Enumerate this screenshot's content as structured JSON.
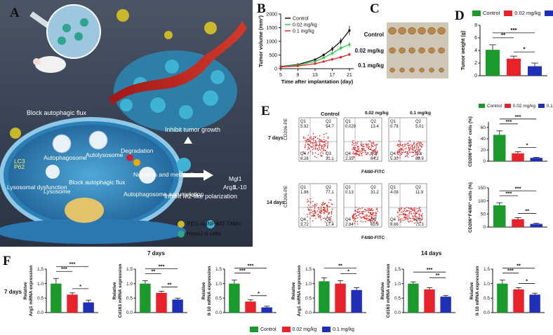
{
  "panels": {
    "A": "A",
    "B": "B",
    "C": "C",
    "D": "D",
    "E": "E",
    "F": "F"
  },
  "panelA": {
    "block_flux": "Block autophagic flux",
    "inhibit_growth": "Inhibit tumor growth",
    "inhibit_m2": "Inhibit M2-like polarization",
    "autophagosome": "Autophagosome",
    "autolysosome": "Autolysosome",
    "degradation": "Degradation",
    "lysosomal_dysfunction": "Lysosomal dysfunction",
    "lysosome": "Lysosome",
    "block_flux_inner": "Block autophagic flux",
    "nutrients": "Nutrients and metabolites",
    "accumulation": "Autophagosome accumulation",
    "lc3": "LC3",
    "p62": "P62",
    "arg1": "Arg1",
    "il10": "IL-10",
    "mgl1": "Mgl1",
    "legend_pegau": "PEG-AuNPs",
    "legend_hepa": "Hepa1-6 cells",
    "legend_m2": "M2-TAMs"
  },
  "colors": {
    "control": "#1a9a2a",
    "low": "#e8222a",
    "high": "#1f2fb8",
    "green_line": "#2ecc40",
    "red_line": "#e8222a",
    "black_line": "#111111"
  },
  "chart_data": [
    {
      "id": "B",
      "type": "line",
      "ylabel": "Tumor volume (mm³)",
      "xlabel": "Time after implantation (day)",
      "x": [
        5,
        9,
        13,
        15,
        17,
        19,
        21
      ],
      "xticks": [
        "5",
        "9",
        "13",
        "17",
        "21"
      ],
      "yticks": [
        "0",
        "500",
        "1000",
        "1500",
        "2000"
      ],
      "ylim": [
        0,
        2000
      ],
      "series": [
        {
          "name": "Control",
          "values": [
            80,
            150,
            330,
            500,
            720,
            1000,
            1400
          ]
        },
        {
          "name": "0.02 mg/kg",
          "values": [
            70,
            130,
            260,
            400,
            560,
            760,
            880
          ]
        },
        {
          "name": "0.1 mg/kg",
          "values": [
            60,
            100,
            180,
            260,
            340,
            420,
            520
          ]
        }
      ]
    },
    {
      "id": "D",
      "type": "bar",
      "ylabel": "Tumor weight (g)",
      "categories": [
        "Control",
        "0.02 mg/kg",
        "0.1 mg/kg"
      ],
      "values": [
        4.1,
        2.7,
        1.5
      ],
      "errors": [
        0.8,
        0.4,
        0.5
      ],
      "yticks": [
        "0",
        "2",
        "4",
        "6",
        "8"
      ],
      "ylim": [
        0,
        8
      ],
      "sig": [
        "**",
        "***",
        "*"
      ]
    },
    {
      "id": "E-7d",
      "type": "bar",
      "ylabel": "CD206⁺F4/80⁺ cells (%)",
      "categories": [
        "Control",
        "0.02 mg/kg",
        "0.1 mg/kg"
      ],
      "values": [
        47,
        14,
        6
      ],
      "errors": [
        7,
        3,
        1
      ],
      "yticks": [
        "0",
        "20",
        "40",
        "60"
      ],
      "ylim": [
        0,
        70
      ],
      "sig": [
        "***",
        "***",
        "*"
      ]
    },
    {
      "id": "E-14d",
      "type": "bar",
      "ylabel": "CD206⁺F4/80⁺ cells (%)",
      "categories": [
        "Control",
        "0.02 mg/kg",
        "0.1 mg/kg"
      ],
      "values": [
        83,
        30,
        12
      ],
      "errors": [
        10,
        6,
        3
      ],
      "yticks": [
        "0",
        "50",
        "100",
        "150"
      ],
      "ylim": [
        0,
        150
      ],
      "sig": [
        "***",
        "***",
        "**"
      ]
    }
  ],
  "panelC": {
    "rows": [
      "Control",
      "0.02 mg/kg",
      "0.1 mg/kg"
    ]
  },
  "legends": {
    "control": "Control",
    "low": "0.02 mg/kg",
    "high": "0.1 mg/kg"
  },
  "flow": {
    "headers": [
      "Control",
      "0.02 mg/kg",
      "0.1 mg/kg"
    ],
    "row_labels": [
      "7 days",
      "14 days"
    ],
    "ylabel": "CD206-PE",
    "xlabel": "F4/80-FITC",
    "rows": [
      [
        {
          "q1": "5.92",
          "q2": "54.7",
          "q3": "31.1",
          "q4": "8.28"
        },
        {
          "q1": "0.029",
          "q2": "13.4",
          "q3": "84.2",
          "q4": "2.35"
        },
        {
          "q1": "0.78",
          "q2": "5.01",
          "q3": "88.9",
          "q4": "5.30"
        }
      ],
      [
        {
          "q1": "1.86",
          "q2": "77.1",
          "q3": "17.4",
          "q4": "3.72"
        },
        {
          "q1": "0.13",
          "q2": "31.2",
          "q3": "65.9",
          "q4": "2.84"
        },
        {
          "q1": "4.08",
          "q2": "11.9",
          "q3": "75.3",
          "q4": "8.66"
        }
      ]
    ]
  },
  "panelF": {
    "title_7d": "7 days",
    "title_14d": "14 days",
    "row_label": "7 days",
    "charts": [
      {
        "ylabel": "Relative",
        "gene": "Arg1",
        "unit": "mRNA expression",
        "values": [
          1.0,
          0.62,
          0.35
        ],
        "errors": [
          0.18,
          0.06,
          0.08
        ],
        "sig": [
          "***",
          "***",
          "*"
        ]
      },
      {
        "ylabel": "Relative",
        "gene": "Cd163",
        "unit": "mRNA expression",
        "values": [
          1.0,
          0.68,
          0.45
        ],
        "errors": [
          0.1,
          0.06,
          0.05
        ],
        "sig": [
          "**",
          "***",
          "**"
        ]
      },
      {
        "ylabel": "Relative",
        "gene": "Il-10",
        "unit": "mRNA expression",
        "values": [
          1.0,
          0.38,
          0.18
        ],
        "errors": [
          0.12,
          0.06,
          0.04
        ],
        "sig": [
          "***",
          "***",
          "*"
        ]
      },
      {
        "ylabel": "Relative",
        "gene": "Arg1",
        "unit": "mRNA expression",
        "values": [
          1.08,
          1.0,
          0.78
        ],
        "errors": [
          0.12,
          0.1,
          0.08
        ],
        "sig": [
          "**",
          "*"
        ]
      },
      {
        "ylabel": "Relative",
        "gene": "Cd163",
        "unit": "mRNA expression",
        "values": [
          1.0,
          0.8,
          0.55
        ],
        "errors": [
          0.06,
          0.06,
          0.04
        ],
        "sig": [
          "***",
          "**"
        ]
      },
      {
        "ylabel": "Relative",
        "gene": "Il-10",
        "unit": "mRNA expression",
        "values": [
          1.0,
          0.8,
          0.62
        ],
        "errors": [
          0.12,
          0.06,
          0.05
        ],
        "sig": [
          "***",
          "**",
          "*"
        ]
      }
    ],
    "yticks": [
      "0.0",
      "0.5",
      "1.0",
      "1.5"
    ]
  }
}
